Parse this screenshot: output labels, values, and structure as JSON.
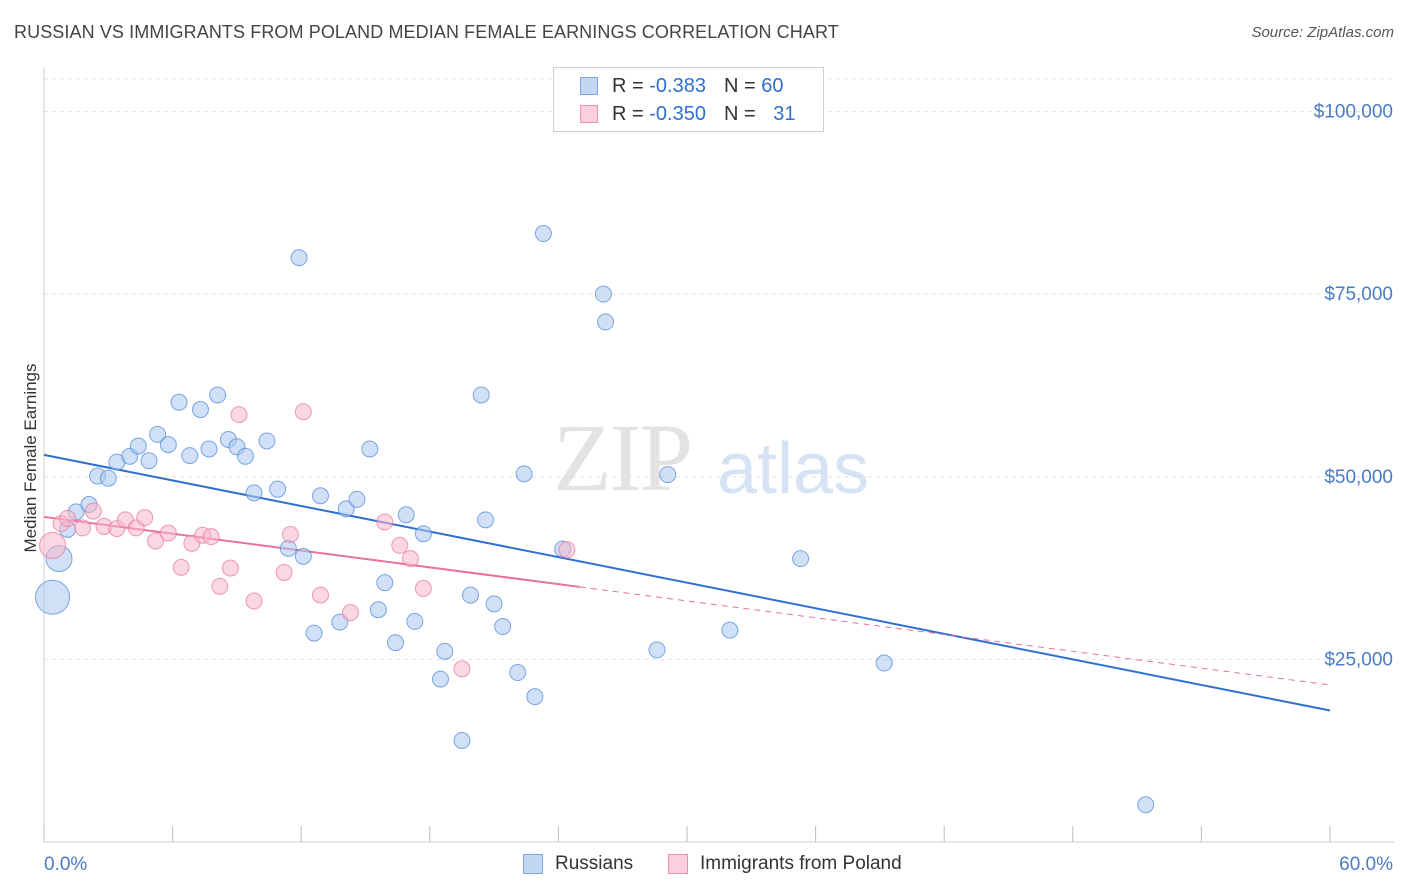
{
  "title": "RUSSIAN VS IMMIGRANTS FROM POLAND MEDIAN FEMALE EARNINGS CORRELATION CHART",
  "source": "Source: ZipAtlas.com",
  "watermark": {
    "zip": "ZIP",
    "atlas": "atlas"
  },
  "legend": {
    "rows": [
      {
        "r_label": "R = ",
        "r_value": "-0.383",
        "n_label": "N = ",
        "n_value": "60",
        "color": "#a9c6ef"
      },
      {
        "r_label": "R = ",
        "r_value": "-0.350",
        "n_label": "N = ",
        "n_value": "31",
        "color": "#f5b6ca"
      }
    ]
  },
  "bottom_legend": [
    {
      "label": "Russians",
      "color": "#a9c6ef"
    },
    {
      "label": "Immigrants from Poland",
      "color": "#f5b6ca"
    }
  ],
  "chart_data": {
    "type": "scatter",
    "title": "RUSSIAN VS IMMIGRANTS FROM POLAND MEDIAN FEMALE EARNINGS CORRELATION CHART",
    "xlabel": "",
    "ylabel": "Median Female Earnings",
    "xlim": [
      0,
      60
    ],
    "ylim": [
      0,
      105000
    ],
    "x_tick_labels": [
      "0.0%",
      "60.0%"
    ],
    "y_ticks": [
      25000,
      50000,
      75000,
      100000
    ],
    "y_tick_labels": [
      "$25,000",
      "$50,000",
      "$75,000",
      "$100,000"
    ],
    "grid": true,
    "legend_position": "top-center",
    "series": [
      {
        "name": "Russians",
        "color": "#4a84d8",
        "fill": "#a9c6ef",
        "trend": {
          "x": [
            0,
            60
          ],
          "y": [
            53000,
            18000
          ],
          "dashed_after": null
        },
        "points": [
          {
            "x": 0.4,
            "y": 33500,
            "s": 3
          },
          {
            "x": 0.7,
            "y": 38800,
            "s": 2
          },
          {
            "x": 1.1,
            "y": 42800,
            "s": 1
          },
          {
            "x": 1.5,
            "y": 45200,
            "s": 1
          },
          {
            "x": 2.1,
            "y": 46200,
            "s": 1
          },
          {
            "x": 2.5,
            "y": 50100,
            "s": 1
          },
          {
            "x": 3.0,
            "y": 49800,
            "s": 1
          },
          {
            "x": 3.4,
            "y": 52000,
            "s": 1
          },
          {
            "x": 4.0,
            "y": 52800,
            "s": 1
          },
          {
            "x": 4.4,
            "y": 54200,
            "s": 1
          },
          {
            "x": 4.9,
            "y": 52200,
            "s": 1
          },
          {
            "x": 5.3,
            "y": 55800,
            "s": 1
          },
          {
            "x": 5.8,
            "y": 54400,
            "s": 1
          },
          {
            "x": 6.3,
            "y": 60200,
            "s": 1
          },
          {
            "x": 6.8,
            "y": 52900,
            "s": 1
          },
          {
            "x": 7.3,
            "y": 59200,
            "s": 1
          },
          {
            "x": 7.7,
            "y": 53800,
            "s": 1
          },
          {
            "x": 8.1,
            "y": 61200,
            "s": 1
          },
          {
            "x": 8.6,
            "y": 55100,
            "s": 1
          },
          {
            "x": 9.0,
            "y": 54100,
            "s": 1
          },
          {
            "x": 9.4,
            "y": 52800,
            "s": 1
          },
          {
            "x": 9.8,
            "y": 47800,
            "s": 1
          },
          {
            "x": 10.4,
            "y": 54900,
            "s": 1
          },
          {
            "x": 10.9,
            "y": 48300,
            "s": 1
          },
          {
            "x": 11.4,
            "y": 40200,
            "s": 1
          },
          {
            "x": 11.9,
            "y": 80000,
            "s": 1
          },
          {
            "x": 12.1,
            "y": 39100,
            "s": 1
          },
          {
            "x": 12.6,
            "y": 28600,
            "s": 1
          },
          {
            "x": 12.9,
            "y": 47400,
            "s": 1
          },
          {
            "x": 13.8,
            "y": 30100,
            "s": 1
          },
          {
            "x": 14.1,
            "y": 45600,
            "s": 1
          },
          {
            "x": 14.6,
            "y": 46900,
            "s": 1
          },
          {
            "x": 15.2,
            "y": 53800,
            "s": 1
          },
          {
            "x": 15.6,
            "y": 31800,
            "s": 1
          },
          {
            "x": 15.9,
            "y": 35500,
            "s": 1
          },
          {
            "x": 16.4,
            "y": 27300,
            "s": 1
          },
          {
            "x": 16.9,
            "y": 44800,
            "s": 1
          },
          {
            "x": 17.3,
            "y": 30200,
            "s": 1
          },
          {
            "x": 17.7,
            "y": 42200,
            "s": 1
          },
          {
            "x": 18.7,
            "y": 26100,
            "s": 1
          },
          {
            "x": 18.5,
            "y": 22300,
            "s": 1
          },
          {
            "x": 19.5,
            "y": 13900,
            "s": 1
          },
          {
            "x": 19.9,
            "y": 33800,
            "s": 1
          },
          {
            "x": 20.4,
            "y": 61200,
            "s": 1
          },
          {
            "x": 20.6,
            "y": 44100,
            "s": 1
          },
          {
            "x": 21.0,
            "y": 32600,
            "s": 1
          },
          {
            "x": 21.4,
            "y": 29500,
            "s": 1
          },
          {
            "x": 22.1,
            "y": 23200,
            "s": 1
          },
          {
            "x": 22.4,
            "y": 50400,
            "s": 1
          },
          {
            "x": 22.9,
            "y": 19900,
            "s": 1
          },
          {
            "x": 23.3,
            "y": 83300,
            "s": 1
          },
          {
            "x": 24.2,
            "y": 40100,
            "s": 1
          },
          {
            "x": 26.1,
            "y": 75000,
            "s": 1
          },
          {
            "x": 26.2,
            "y": 71200,
            "s": 1
          },
          {
            "x": 28.6,
            "y": 26300,
            "s": 1
          },
          {
            "x": 29.1,
            "y": 50300,
            "s": 1
          },
          {
            "x": 32.0,
            "y": 29000,
            "s": 1
          },
          {
            "x": 35.3,
            "y": 38800,
            "s": 1
          },
          {
            "x": 39.2,
            "y": 24500,
            "s": 1
          },
          {
            "x": 51.4,
            "y": 5100,
            "s": 1
          }
        ]
      },
      {
        "name": "Immigrants from Poland",
        "color": "#e8729a",
        "fill": "#f5b6ca",
        "trend": {
          "x": [
            0,
            60
          ],
          "y": [
            44500,
            21500
          ],
          "solid_until_x": 25
        },
        "points": [
          {
            "x": 0.4,
            "y": 40600,
            "s": 2
          },
          {
            "x": 0.8,
            "y": 43600,
            "s": 1
          },
          {
            "x": 1.1,
            "y": 44300,
            "s": 1
          },
          {
            "x": 1.8,
            "y": 43000,
            "s": 1
          },
          {
            "x": 2.3,
            "y": 45300,
            "s": 1
          },
          {
            "x": 2.8,
            "y": 43200,
            "s": 1
          },
          {
            "x": 3.4,
            "y": 42900,
            "s": 1
          },
          {
            "x": 3.8,
            "y": 44100,
            "s": 1
          },
          {
            "x": 4.3,
            "y": 43000,
            "s": 1
          },
          {
            "x": 4.7,
            "y": 44400,
            "s": 1
          },
          {
            "x": 5.2,
            "y": 41200,
            "s": 1
          },
          {
            "x": 5.8,
            "y": 42300,
            "s": 1
          },
          {
            "x": 6.4,
            "y": 37600,
            "s": 1
          },
          {
            "x": 6.9,
            "y": 40900,
            "s": 1
          },
          {
            "x": 7.4,
            "y": 42000,
            "s": 1
          },
          {
            "x": 7.8,
            "y": 41800,
            "s": 1
          },
          {
            "x": 8.2,
            "y": 35000,
            "s": 1
          },
          {
            "x": 8.7,
            "y": 37500,
            "s": 1
          },
          {
            "x": 9.1,
            "y": 58500,
            "s": 1
          },
          {
            "x": 9.8,
            "y": 33000,
            "s": 1
          },
          {
            "x": 11.2,
            "y": 36900,
            "s": 1
          },
          {
            "x": 11.5,
            "y": 42100,
            "s": 1
          },
          {
            "x": 12.1,
            "y": 58900,
            "s": 1
          },
          {
            "x": 12.9,
            "y": 33800,
            "s": 1
          },
          {
            "x": 14.3,
            "y": 31400,
            "s": 1
          },
          {
            "x": 15.9,
            "y": 43800,
            "s": 1
          },
          {
            "x": 16.6,
            "y": 40600,
            "s": 1
          },
          {
            "x": 17.1,
            "y": 38800,
            "s": 1
          },
          {
            "x": 17.7,
            "y": 34700,
            "s": 1
          },
          {
            "x": 19.5,
            "y": 23700,
            "s": 1
          },
          {
            "x": 24.4,
            "y": 40000,
            "s": 1
          }
        ]
      }
    ]
  }
}
